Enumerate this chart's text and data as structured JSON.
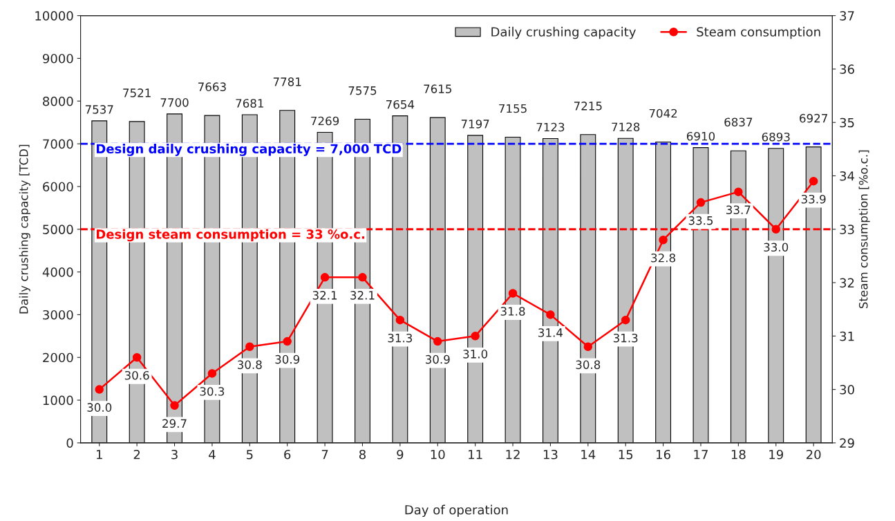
{
  "chart_data": {
    "type": "bar",
    "xlabel": "Day of operation",
    "ylabel": "Daily crushing capacity [TCD]",
    "y2label": "Steam consumption [%o.c.]",
    "categories": [
      "1",
      "2",
      "3",
      "4",
      "5",
      "6",
      "7",
      "8",
      "9",
      "10",
      "11",
      "12",
      "13",
      "14",
      "15",
      "16",
      "17",
      "18",
      "19",
      "20"
    ],
    "series": [
      {
        "name": "Daily crushing capacity",
        "type": "bar",
        "color": "#c0c0c0",
        "values": [
          7537,
          7521,
          7700,
          7663,
          7681,
          7781,
          7269,
          7575,
          7654,
          7615,
          7197,
          7155,
          7123,
          7215,
          7128,
          7042,
          6910,
          6837,
          6893,
          6927
        ],
        "value_labels": [
          "7537",
          "7521",
          "7700",
          "7663",
          "7681",
          "7781",
          "7269",
          "7575",
          "7654",
          "7615",
          "7197",
          "7155",
          "7123",
          "7215",
          "7128",
          "7042",
          "6910",
          "6837",
          "6893",
          "6927"
        ]
      },
      {
        "name": "Steam consumption",
        "type": "line",
        "axis": "y2",
        "color": "#ff0000",
        "marker": "circle",
        "values": [
          30.0,
          30.6,
          29.7,
          30.3,
          30.8,
          30.9,
          32.1,
          32.1,
          31.3,
          30.9,
          31.0,
          31.8,
          31.4,
          30.8,
          31.3,
          32.8,
          33.5,
          33.7,
          33.0,
          33.9
        ],
        "value_labels": [
          "30.0",
          "30.6",
          "29.7",
          "30.3",
          "30.8",
          "30.9",
          "32.1",
          "32.1",
          "31.3",
          "30.9",
          "31.0",
          "31.8",
          "31.4",
          "30.8",
          "31.3",
          "32.8",
          "33.5",
          "33.7",
          "33.0",
          "33.9"
        ]
      }
    ],
    "ylim": [
      0,
      10000
    ],
    "yticks": [
      0,
      1000,
      2000,
      3000,
      4000,
      5000,
      6000,
      7000,
      8000,
      9000,
      10000
    ],
    "y2lim": [
      29,
      37
    ],
    "y2ticks": [
      29,
      30,
      31,
      32,
      33,
      34,
      35,
      36,
      37
    ],
    "ref_lines": [
      {
        "axis": "y",
        "value": 7000,
        "label": "Design daily crushing capacity = 7,000 TCD",
        "color": "#0000ff",
        "line_style": "dashed"
      },
      {
        "axis": "y2",
        "value": 33,
        "label": "Design steam consumption = 33 %o.c.",
        "color": "#ff0000",
        "line_style": "dashed"
      }
    ],
    "grid": false,
    "legend": "top right"
  }
}
